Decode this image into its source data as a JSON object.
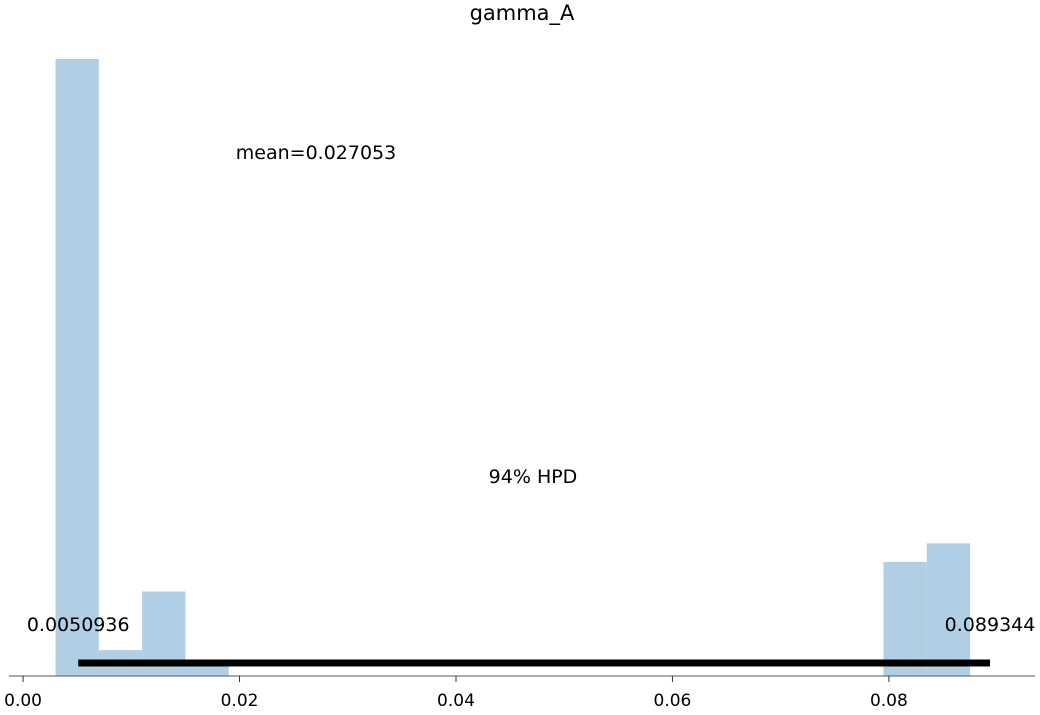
{
  "chart_data": {
    "type": "bar",
    "title": "gamma_A",
    "xlabel": "",
    "ylabel": "",
    "xlim": [
      -0.0013,
      0.0935
    ],
    "ylim": [
      0,
      100
    ],
    "xticks": [
      0.0,
      0.02,
      0.04,
      0.06,
      0.08
    ],
    "xtick_labels": [
      "0.00",
      "0.02",
      "0.04",
      "0.06",
      "0.08"
    ],
    "bins": [
      {
        "x0": 0.003,
        "x1": 0.007,
        "value": 100
      },
      {
        "x0": 0.007,
        "x1": 0.011,
        "value": 4.2
      },
      {
        "x0": 0.011,
        "x1": 0.015,
        "value": 13.7
      },
      {
        "x0": 0.015,
        "x1": 0.019,
        "value": 2.3
      },
      {
        "x0": 0.0795,
        "x1": 0.0835,
        "value": 18.5
      },
      {
        "x0": 0.0835,
        "x1": 0.0875,
        "value": 21.5
      }
    ],
    "bar_color": "#b0cfe4",
    "mean_label": "mean=0.027053",
    "mean_value": 0.027053,
    "hpd": {
      "label": "94% HPD",
      "low": 0.0050936,
      "high": 0.089344,
      "low_label": "0.0050936",
      "high_label": "0.089344",
      "color": "#000000"
    },
    "grid": false,
    "legend": "none"
  }
}
